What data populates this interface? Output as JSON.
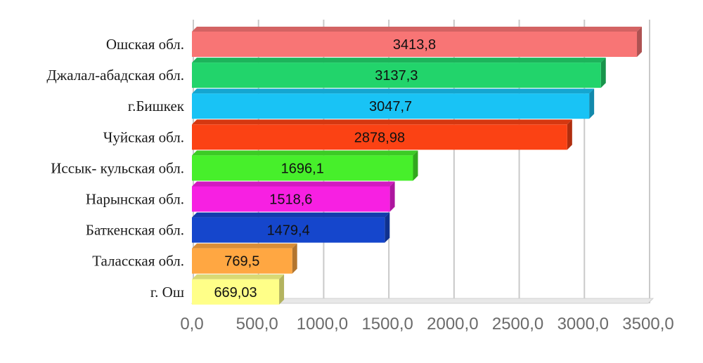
{
  "chart_data": {
    "type": "bar",
    "orientation": "horizontal",
    "style": "3d",
    "categories": [
      "Ошская обл.",
      "Джалал-абадская обл.",
      "г.Бишкек",
      "Чуйская обл.",
      "Иссык- кульская обл.",
      "Нарынская обл.",
      "Баткенская обл.",
      "Таласская обл.",
      "г. Ош"
    ],
    "values": [
      3413.8,
      3137.3,
      3047.7,
      2878.98,
      1696.1,
      1518.6,
      1479.4,
      769.5,
      669.03
    ],
    "data_labels": [
      "3413,8",
      "3137,3",
      "3047,7",
      "2878,98",
      "1696,1",
      "1518,6",
      "1479,4",
      "769,5",
      "669,03"
    ],
    "colors": [
      "#f87575",
      "#22d46b",
      "#19c3f5",
      "#fb4214",
      "#47ef2b",
      "#f720e2",
      "#1546cc",
      "#ffa742",
      "#ffff88"
    ],
    "xlim": [
      0,
      3500
    ],
    "xticks": [
      0,
      500,
      1000,
      1500,
      2000,
      2500,
      3000,
      3500
    ],
    "xtick_labels": [
      "0,0",
      "500,0",
      "1000,0",
      "1500,0",
      "2000,0",
      "2500,0",
      "3000,0",
      "3500,0"
    ],
    "grid": true,
    "legend": false,
    "title": "",
    "xlabel": "",
    "ylabel": ""
  }
}
